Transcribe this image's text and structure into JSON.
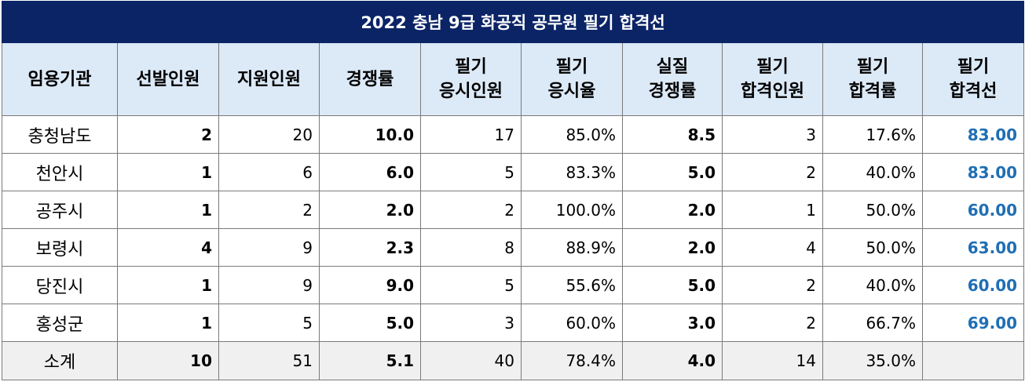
{
  "title": "2022 충남 9급 화공직 공무원 필기 합격선",
  "headers": [
    {
      "line1": "임용기관",
      "line2": ""
    },
    {
      "line1": "선발인원",
      "line2": ""
    },
    {
      "line1": "지원인원",
      "line2": ""
    },
    {
      "line1": "경쟁률",
      "line2": ""
    },
    {
      "line1": "필기",
      "line2": "응시인원"
    },
    {
      "line1": "필기",
      "line2": "응시율"
    },
    {
      "line1": "실질",
      "line2": "경쟁률"
    },
    {
      "line1": "필기",
      "line2": "합격인원"
    },
    {
      "line1": "필기",
      "line2": "합격률"
    },
    {
      "line1": "필기",
      "line2": "합격선"
    }
  ],
  "rows": [
    {
      "agency": "충청남도",
      "selected": "2",
      "applicants": "20",
      "competition": "10.0",
      "exam_takers": "17",
      "attendance_rate": "85.0%",
      "real_competition": "8.5",
      "passers": "3",
      "pass_rate": "17.6%",
      "cutoff": "83.00"
    },
    {
      "agency": "천안시",
      "selected": "1",
      "applicants": "6",
      "competition": "6.0",
      "exam_takers": "5",
      "attendance_rate": "83.3%",
      "real_competition": "5.0",
      "passers": "2",
      "pass_rate": "40.0%",
      "cutoff": "83.00"
    },
    {
      "agency": "공주시",
      "selected": "1",
      "applicants": "2",
      "competition": "2.0",
      "exam_takers": "2",
      "attendance_rate": "100.0%",
      "real_competition": "2.0",
      "passers": "1",
      "pass_rate": "50.0%",
      "cutoff": "60.00"
    },
    {
      "agency": "보령시",
      "selected": "4",
      "applicants": "9",
      "competition": "2.3",
      "exam_takers": "8",
      "attendance_rate": "88.9%",
      "real_competition": "2.0",
      "passers": "4",
      "pass_rate": "50.0%",
      "cutoff": "63.00"
    },
    {
      "agency": "당진시",
      "selected": "1",
      "applicants": "9",
      "competition": "9.0",
      "exam_takers": "5",
      "attendance_rate": "55.6%",
      "real_competition": "5.0",
      "passers": "2",
      "pass_rate": "40.0%",
      "cutoff": "60.00"
    },
    {
      "agency": "홍성군",
      "selected": "1",
      "applicants": "5",
      "competition": "5.0",
      "exam_takers": "3",
      "attendance_rate": "60.0%",
      "real_competition": "3.0",
      "passers": "2",
      "pass_rate": "66.7%",
      "cutoff": "69.00"
    }
  ],
  "total": {
    "agency": "소계",
    "selected": "10",
    "applicants": "51",
    "competition": "5.1",
    "exam_takers": "40",
    "attendance_rate": "78.4%",
    "real_competition": "4.0",
    "passers": "14",
    "pass_rate": "35.0%",
    "cutoff": ""
  },
  "colors": {
    "title_bg": "#0b2466",
    "header_bg": "#dce9f7",
    "cutoff_text": "#1f6fb4",
    "total_bg": "#f0f0f0"
  }
}
